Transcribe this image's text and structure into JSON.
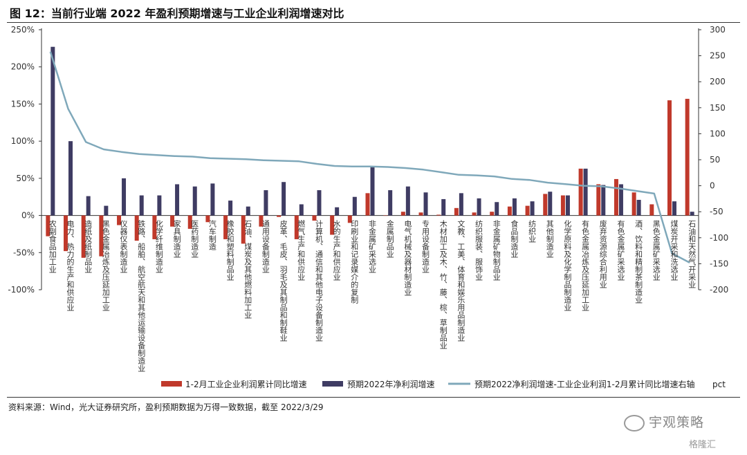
{
  "figure": {
    "title": "图 12：当前行业端 2022 年盈利预期增速与工业企业利润增速对比",
    "source": "资料来源：Wind，光大证券研究所，盈利预期数据为万得一致数据，截至 2022/3/29",
    "watermark": "宇观策略",
    "brand": "格隆汇"
  },
  "chart_data": {
    "type": "bar",
    "left_axis": {
      "ylim": [
        -100,
        250
      ],
      "ticks": [
        "250%",
        "200%",
        "150%",
        "100%",
        "50%",
        "0%",
        "-50%",
        "-100%"
      ]
    },
    "right_axis": {
      "ylim": [
        -200,
        300
      ],
      "ticks": [
        "300",
        "250",
        "200",
        "150",
        "100",
        "50",
        "0",
        "-50",
        "-100",
        "-150",
        "-200"
      ]
    },
    "categories": [
      "农副食品加工业",
      "电力、热力的生产和供应业",
      "造纸及纸制品业",
      "黑色金属冶炼及压延加工业",
      "仪器仪表制造业",
      "铁路、船舶、航空航天和其他运输设备制造业",
      "化学纤维制造业",
      "家具制造业",
      "医药制造业",
      "汽车制造",
      "橡胶和塑料制品业",
      "石油、煤炭及其他燃料加工业",
      "通用设备制造业",
      "皮革、毛皮、羽毛及其制品和制鞋业",
      "燃气生产和供应业",
      "计算机、通信和其他电子设备制造业",
      "水的生产和供应业",
      "印刷业和记录媒介的复制",
      "非金属矿采选业",
      "金属制品业",
      "电气机械及器材制造业",
      "专用设备制造业",
      "木材加工及木、竹、藤、棕、草制品业",
      "文教、工美、体育和娱乐用品制造业",
      "纺织服装、服饰业",
      "非金属矿物制品业",
      "食品制造业",
      "纺织业",
      "其他制造业",
      "化学原料及化学制品制造业",
      "有色金属冶炼及压延加工业",
      "废弃资源综合利用业",
      "有色金属矿采选业",
      "酒、饮料和精制茶制造业",
      "黑色金属矿采选业",
      "煤炭开采和洗选业",
      "石油和天然气开采业"
    ],
    "series": [
      {
        "name": "1-2月工业企业利润累计同比增速",
        "axis": "left",
        "color": "#c0392b",
        "values": [
          -28,
          -48,
          -57,
          -55,
          -13,
          -34,
          -32,
          -15,
          -18,
          -9,
          -32,
          -38,
          -15,
          -2,
          -32,
          -7,
          -26,
          -10,
          30,
          0,
          5,
          4,
          1,
          10,
          4,
          5,
          12,
          13,
          29,
          27,
          63,
          42,
          49,
          31,
          15,
          155,
          157
        ]
      },
      {
        "name": "预期2022年净利润增速",
        "axis": "left",
        "color": "#3f3c63",
        "values": [
          227,
          100,
          26,
          13,
          50,
          27,
          27,
          42,
          39,
          43,
          20,
          12,
          34,
          45,
          15,
          34,
          11,
          25,
          65,
          34,
          39,
          31,
          22,
          30,
          23,
          18,
          23,
          19,
          32,
          27,
          63,
          41,
          42,
          21,
          0,
          19,
          5
        ]
      },
      {
        "name": "预期2022净利润增速-工业企业利润1-2月累计同比增速右轴",
        "axis": "right",
        "color": "#7fa8ba",
        "values": [
          258,
          148,
          84,
          70,
          65,
          61,
          59,
          57,
          56,
          53,
          52,
          51,
          49,
          48,
          47,
          42,
          38,
          37,
          37,
          36,
          34,
          31,
          26,
          21,
          20,
          18,
          13,
          11,
          6,
          3,
          0,
          -1,
          -5,
          -10,
          -15,
          -130,
          -148
        ]
      }
    ],
    "legend": [
      "1-2月工业企业利润累计同比增速",
      "预期2022年净利润增速",
      "预期2022净利润增速-工业企业利润1-2月累计同比增速右轴"
    ],
    "legend_suffix": "pct",
    "legend_position": "bottom"
  }
}
